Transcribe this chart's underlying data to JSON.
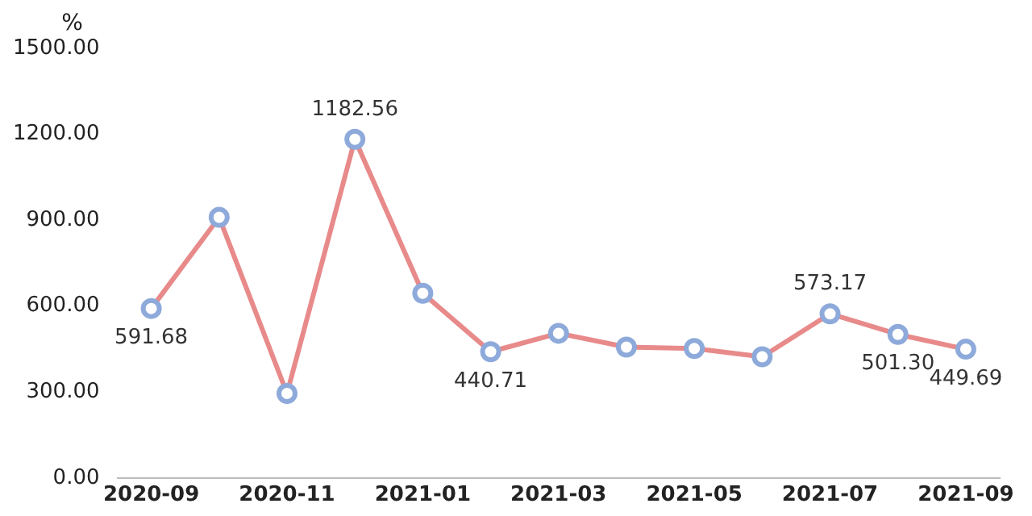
{
  "chart_data": {
    "type": "line",
    "ylabel": "%",
    "categories": [
      "2020-09",
      null,
      "2020-11",
      null,
      "2021-01",
      null,
      "2021-03",
      null,
      "2021-05",
      null,
      "2021-07",
      null,
      "2021-09"
    ],
    "series": [
      {
        "color": "#e88a8a",
        "values": [
          591.68,
          910,
          295,
          1182.56,
          645,
          440.71,
          505,
          457,
          452,
          423,
          573.17,
          501.3,
          449.69
        ],
        "value_labels": [
          "591.68",
          null,
          null,
          "1182.56",
          null,
          "440.71",
          null,
          null,
          null,
          null,
          "573.17",
          "501.30",
          "449.69"
        ]
      }
    ],
    "ylim": [
      0,
      1500
    ],
    "yticks": [
      {
        "value": 0,
        "label": "0.00"
      },
      {
        "value": 300,
        "label": "300.00"
      },
      {
        "value": 600,
        "label": "600.00"
      },
      {
        "value": 900,
        "label": "900.00"
      },
      {
        "value": 1200,
        "label": "1200.00"
      },
      {
        "value": 1500,
        "label": "1500.00"
      }
    ],
    "marker": "circle",
    "line_style": "solid",
    "grid": false,
    "legend": false
  }
}
